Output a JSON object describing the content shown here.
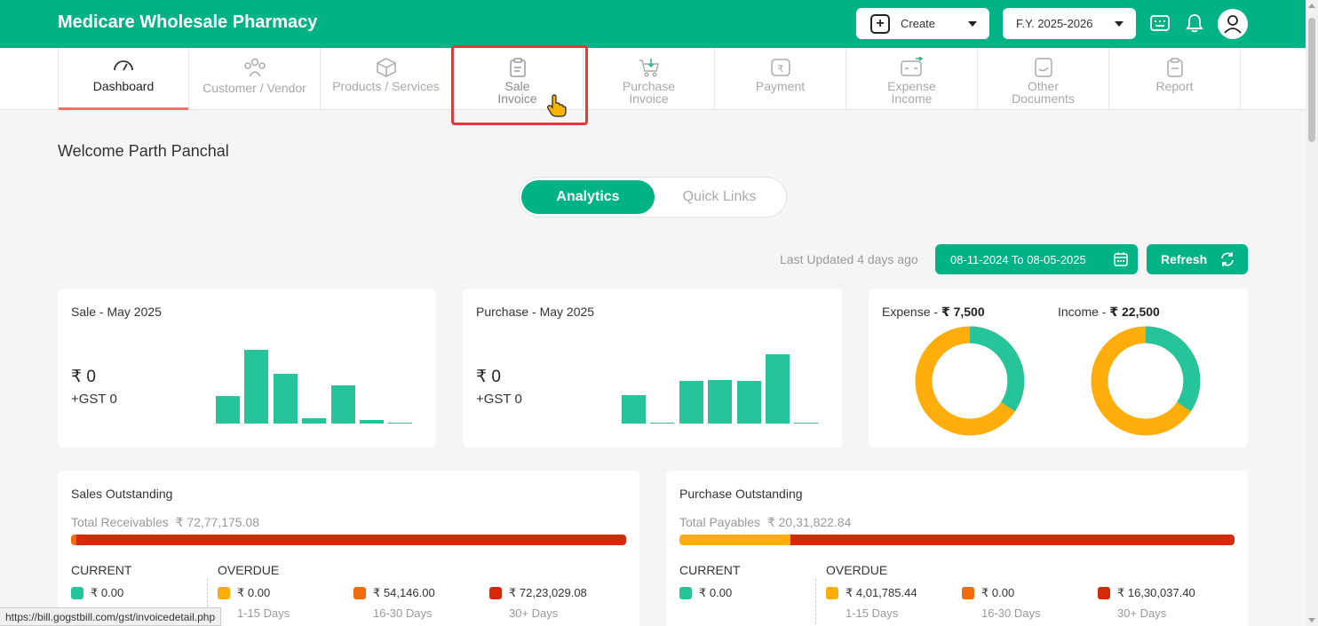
{
  "header": {
    "app_title": "Medicare Wholesale Pharmacy",
    "create_label": "Create",
    "fy_label": "F.Y. 2025-2026"
  },
  "nav": {
    "items": [
      {
        "label": "Dashboard",
        "icon": "speedometer-icon"
      },
      {
        "label": "Customer / Vendor",
        "icon": "users-icon"
      },
      {
        "label": "Products / Services",
        "icon": "box-icon"
      },
      {
        "label": "Sale\nInvoice",
        "icon": "clipboard-icon"
      },
      {
        "label": "Purchase\nInvoice",
        "icon": "cart-icon"
      },
      {
        "label": "Payment",
        "icon": "rupee-icon"
      },
      {
        "label": "Expense\nIncome",
        "icon": "wallet-icon"
      },
      {
        "label": "Other\nDocuments",
        "icon": "document-icon"
      },
      {
        "label": "Report",
        "icon": "report-icon"
      }
    ]
  },
  "welcome": "Welcome Parth Panchal",
  "toggle": {
    "analytics": "Analytics",
    "quick_links": "Quick Links"
  },
  "last_updated": "Last Updated 4 days ago",
  "date_range": "08-11-2024 To 08-05-2025",
  "refresh_label": "Refresh",
  "sale_card": {
    "title": "Sale - May 2025",
    "amount": "₹ 0",
    "gst": "+GST 0",
    "bar_values": [
      34,
      90,
      61,
      7,
      47,
      4,
      1
    ]
  },
  "purchase_card": {
    "title": "Purchase - May 2025",
    "amount": "₹ 0",
    "gst": "+GST 0",
    "bar_values": [
      35,
      1,
      52,
      53,
      52,
      85,
      1
    ]
  },
  "expense_income": {
    "expense_label": "Expense - ",
    "expense_value": "₹ 7,500",
    "income_label": "Income - ",
    "income_value": "₹ 22,500",
    "colors": {
      "green": "#26c49a",
      "orange": "#ffad0a"
    }
  },
  "sales_outstanding": {
    "title": "Sales Outstanding",
    "total_label": "Total Receivables",
    "total_value": "₹ 72,77,175.08",
    "current_label": "CURRENT",
    "overdue_label": "OVERDUE",
    "current_value": "₹ 0.00",
    "overdue": [
      {
        "value": "₹ 0.00",
        "range": "1-15 Days",
        "color": "#ffad0a"
      },
      {
        "value": "₹ 54,146.00",
        "range": "16-30 Days",
        "color": "#f06a0f"
      },
      {
        "value": "₹ 72,23,029.08",
        "range": "30+ Days",
        "color": "#d42a0a"
      }
    ]
  },
  "purchase_outstanding": {
    "title": "Purchase Outstanding",
    "total_label": "Total Payables",
    "total_value": "₹ 20,31,822.84",
    "current_label": "CURRENT",
    "overdue_label": "OVERDUE",
    "current_value": "₹ 0.00",
    "overdue": [
      {
        "value": "₹ 4,01,785.44",
        "range": "1-15 Days",
        "color": "#ffad0a"
      },
      {
        "value": "₹ 0.00",
        "range": "16-30 Days",
        "color": "#f06a0f"
      },
      {
        "value": "₹ 16,30,037.40",
        "range": "30+ Days",
        "color": "#d42a0a"
      }
    ]
  },
  "status_url": "https://bill.gogstbill.com/gst/invoicedetail.php"
}
